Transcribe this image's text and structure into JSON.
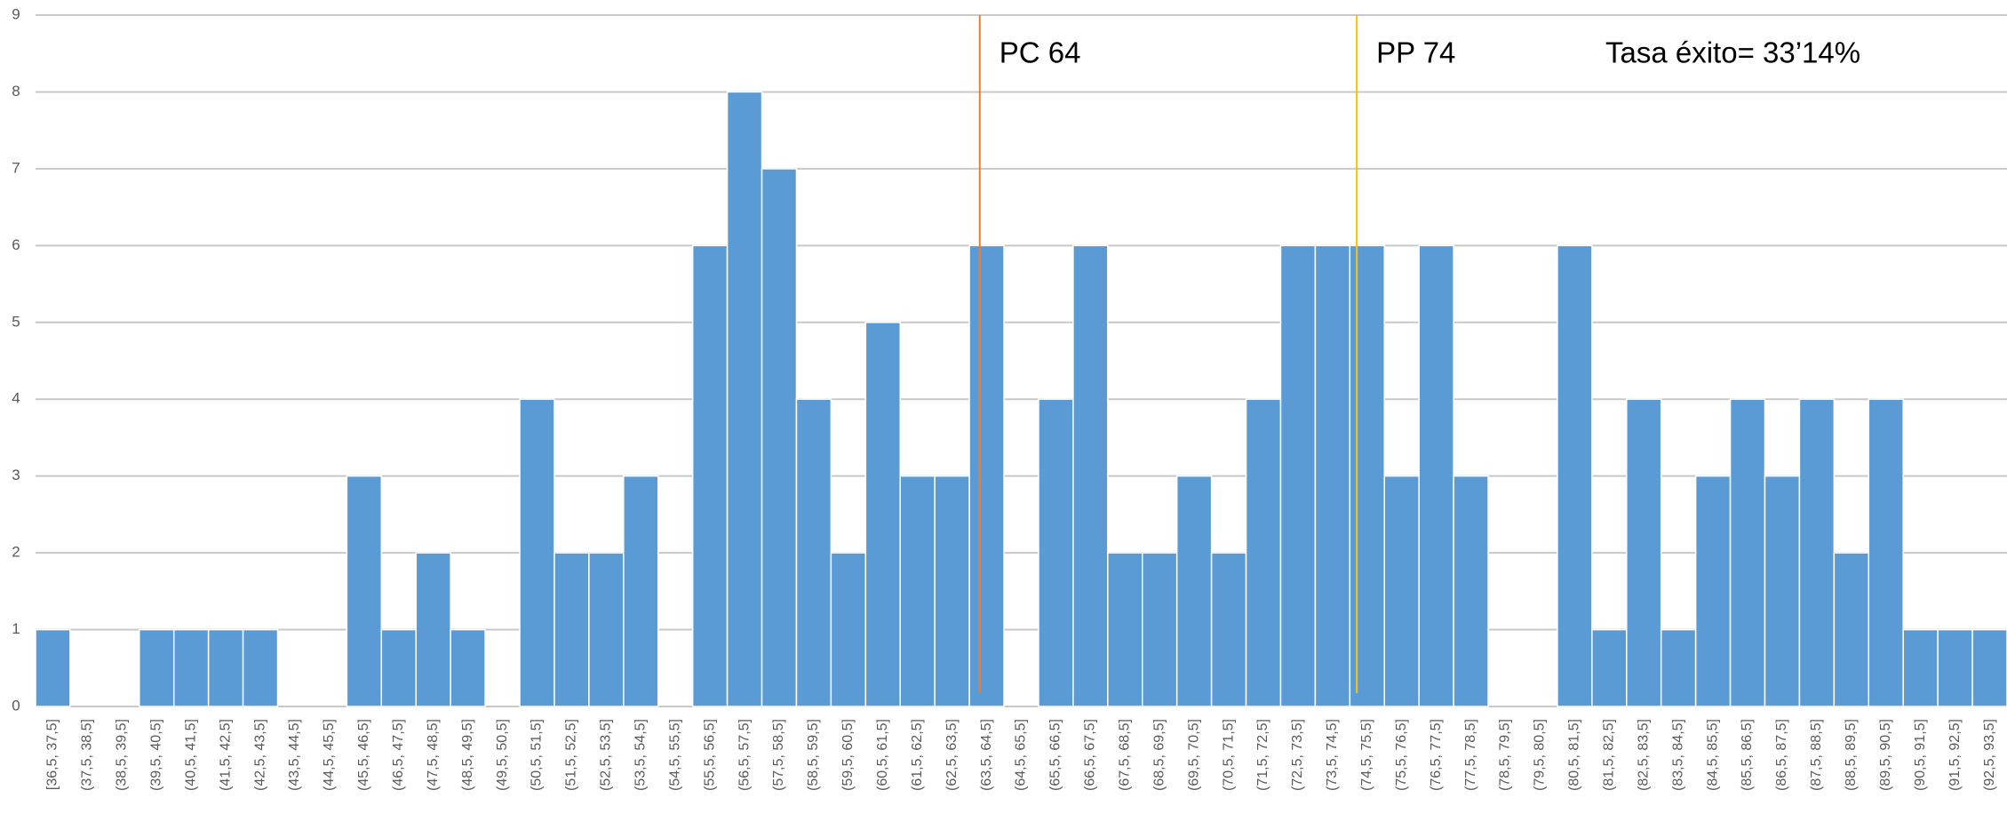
{
  "chart_data": {
    "type": "bar",
    "categories": [
      "[36,5, 37,5]",
      "(37,5, 38,5]",
      "(38,5, 39,5]",
      "(39,5, 40,5]",
      "(40,5, 41,5]",
      "(41,5, 42,5]",
      "(42,5, 43,5]",
      "(43,5, 44,5]",
      "(44,5, 45,5]",
      "(45,5, 46,5]",
      "(46,5, 47,5]",
      "(47,5, 48,5]",
      "(48,5, 49,5]",
      "(49,5, 50,5]",
      "(50,5, 51,5]",
      "(51,5, 52,5]",
      "(52,5, 53,5]",
      "(53,5, 54,5]",
      "(54,5, 55,5]",
      "(55,5, 56,5]",
      "(56,5, 57,5]",
      "(57,5, 58,5]",
      "(58,5, 59,5]",
      "(59,5, 60,5]",
      "(60,5, 61,5]",
      "(61,5, 62,5]",
      "(62,5, 63,5]",
      "(63,5, 64,5]",
      "(64,5, 65,5]",
      "(65,5, 66,5]",
      "(66,5, 67,5]",
      "(67,5, 68,5]",
      "(68,5, 69,5]",
      "(69,5, 70,5]",
      "(70,5, 71,5]",
      "(71,5, 72,5]",
      "(72,5, 73,5]",
      "(73,5, 74,5]",
      "(74,5, 75,5]",
      "(75,5, 76,5]",
      "(76,5, 77,5]",
      "(77,5, 78,5]",
      "(78,5, 79,5]",
      "(79,5, 80,5]",
      "(80,5, 81,5]",
      "(81,5, 82,5]",
      "(82,5, 83,5]",
      "(83,5, 84,5]",
      "(84,5, 85,5]",
      "(85,5, 86,5]",
      "(86,5, 87,5]",
      "(87,5, 88,5]",
      "(88,5, 89,5]",
      "(89,5, 90,5]",
      "(90,5, 91,5]",
      "(91,5, 92,5]",
      "(92,5, 93,5]"
    ],
    "values": [
      1,
      0,
      0,
      1,
      1,
      1,
      1,
      0,
      0,
      3,
      1,
      2,
      1,
      0,
      4,
      2,
      2,
      3,
      0,
      6,
      8,
      7,
      4,
      2,
      5,
      3,
      3,
      6,
      0,
      4,
      6,
      2,
      2,
      3,
      2,
      4,
      6,
      6,
      6,
      3,
      6,
      3,
      0,
      0,
      6,
      1,
      4,
      1,
      3,
      4,
      3,
      4,
      2,
      4,
      1,
      1,
      1
    ],
    "color": "#5b9bd5",
    "xlim": [
      36.5,
      93.5
    ],
    "ylim": [
      0,
      9
    ],
    "yticks": [
      0,
      1,
      2,
      3,
      4,
      5,
      6,
      7,
      8,
      9
    ],
    "grid": true,
    "markers": [
      {
        "label": "PC 64",
        "x": 63.8,
        "color": "#ed7d31"
      },
      {
        "label": "PP 74",
        "x": 74.7,
        "color": "#ffc000"
      }
    ],
    "annotation": "Tasa éxito= 33’14%"
  }
}
